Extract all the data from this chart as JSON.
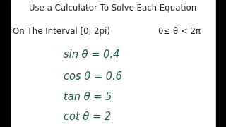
{
  "background_color": "#ffffff",
  "left_bar_color": "#000000",
  "right_bar_color": "#000000",
  "title_line1": "Use a Calculator To Solve Each Equation",
  "title_line2_left": "On The Interval [0, 2pi)",
  "title_line2_right": "0≤ θ < 2π",
  "equations": [
    "sin θ = 0.4",
    "cos θ = 0.6",
    "tan θ = 5",
    "cot θ = 2"
  ],
  "text_color": "#1a5c3a",
  "title_color": "#222222",
  "font_size_title": 8.5,
  "font_size_eq": 10.5,
  "fig_width": 3.2,
  "fig_height": 1.8,
  "dpi": 100,
  "bar_width": 0.045
}
